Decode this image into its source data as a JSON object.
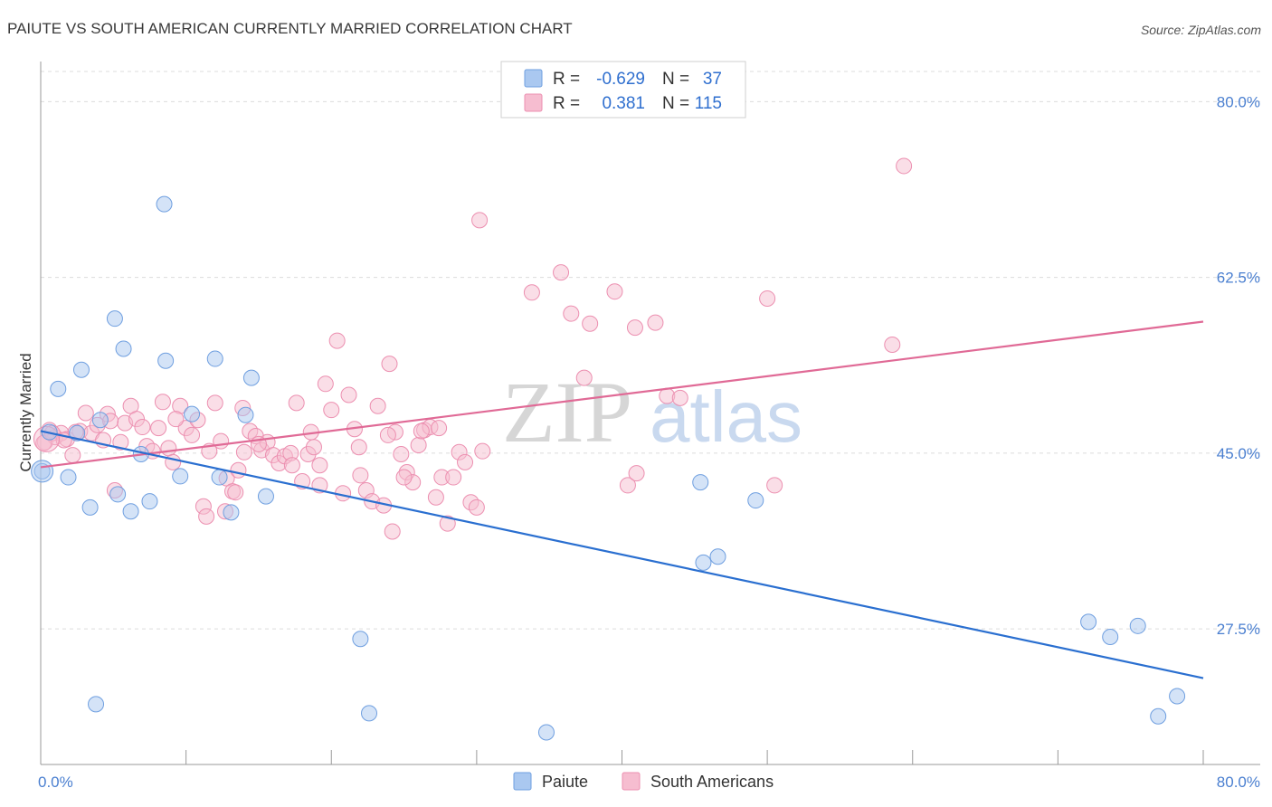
{
  "header": {
    "title": "PAIUTE VS SOUTH AMERICAN CURRENTLY MARRIED CORRELATION CHART",
    "source": "Source: ZipAtlas.com"
  },
  "watermark": {
    "zip": "ZIP",
    "atlas": "atlas"
  },
  "colors": {
    "paiute_fill": "#aac8f0",
    "paiute_stroke": "#6f9fe0",
    "paiute_line": "#2a6fd0",
    "sa_fill": "#f6bdd0",
    "sa_stroke": "#ec8fb0",
    "sa_line": "#e06a96"
  },
  "legend": {
    "rows": [
      {
        "r_label": "R =",
        "r_value": "-0.629",
        "n_label": "N =",
        "n_value": "37"
      },
      {
        "r_label": "R =",
        "r_value": "0.381",
        "n_label": "N =",
        "n_value": "115"
      }
    ]
  },
  "chart_data": {
    "type": "scatter",
    "title": "PAIUTE VS SOUTH AMERICAN CURRENTLY MARRIED CORRELATION CHART",
    "xlabel": "",
    "ylabel": "Currently Married",
    "xlim": [
      0,
      80
    ],
    "ylim": [
      14,
      84
    ],
    "x_tick_labels": [
      "0.0%",
      "80.0%"
    ],
    "y_ticks": [
      27.5,
      45.0,
      62.5,
      80.0
    ],
    "y_tick_labels": [
      "27.5%",
      "45.0%",
      "62.5%",
      "80.0%"
    ],
    "legend_position": "top-center",
    "series": [
      {
        "name": "Paiute",
        "trend": {
          "x": [
            0,
            80
          ],
          "y": [
            47.2,
            22.6
          ]
        },
        "points": [
          [
            0.1,
            43.2
          ],
          [
            1.2,
            51.4
          ],
          [
            2.8,
            53.3
          ],
          [
            5.1,
            58.4
          ],
          [
            5.7,
            55.4
          ],
          [
            8.5,
            69.8
          ],
          [
            8.6,
            54.2
          ],
          [
            12.0,
            54.4
          ],
          [
            14.5,
            52.5
          ],
          [
            1.9,
            42.6
          ],
          [
            3.4,
            39.6
          ],
          [
            5.3,
            40.9
          ],
          [
            6.2,
            39.2
          ],
          [
            7.5,
            40.2
          ],
          [
            9.6,
            42.7
          ],
          [
            12.3,
            42.6
          ],
          [
            13.1,
            39.1
          ],
          [
            15.5,
            40.7
          ],
          [
            6.9,
            44.9
          ],
          [
            2.5,
            47.0
          ],
          [
            4.1,
            48.3
          ],
          [
            10.4,
            48.9
          ],
          [
            14.1,
            48.8
          ],
          [
            0.6,
            47.1
          ],
          [
            3.8,
            20.0
          ],
          [
            22.0,
            26.5
          ],
          [
            22.6,
            19.1
          ],
          [
            34.8,
            17.2
          ],
          [
            45.6,
            34.1
          ],
          [
            46.6,
            34.7
          ],
          [
            45.4,
            42.1
          ],
          [
            49.2,
            40.3
          ],
          [
            72.1,
            28.2
          ],
          [
            73.6,
            26.7
          ],
          [
            75.5,
            27.8
          ],
          [
            76.9,
            18.8
          ],
          [
            78.2,
            20.8
          ]
        ]
      },
      {
        "name": "South Americans",
        "trend": {
          "x": [
            0,
            80
          ],
          "y": [
            43.6,
            58.1
          ]
        },
        "points": [
          [
            0.3,
            46.1
          ],
          [
            0.6,
            47.3
          ],
          [
            1.0,
            46.6
          ],
          [
            1.4,
            47.0
          ],
          [
            1.8,
            46.4
          ],
          [
            2.2,
            44.8
          ],
          [
            2.7,
            47.2
          ],
          [
            3.1,
            49.0
          ],
          [
            3.5,
            47.0
          ],
          [
            3.9,
            47.8
          ],
          [
            4.3,
            46.3
          ],
          [
            4.6,
            48.9
          ],
          [
            5.1,
            41.3
          ],
          [
            5.5,
            46.1
          ],
          [
            5.8,
            48.0
          ],
          [
            6.2,
            49.7
          ],
          [
            6.6,
            48.4
          ],
          [
            7.0,
            47.6
          ],
          [
            7.3,
            45.7
          ],
          [
            7.7,
            45.2
          ],
          [
            8.1,
            47.5
          ],
          [
            8.4,
            50.1
          ],
          [
            8.8,
            45.5
          ],
          [
            9.1,
            44.1
          ],
          [
            9.6,
            49.7
          ],
          [
            10.0,
            47.5
          ],
          [
            10.4,
            46.8
          ],
          [
            10.8,
            48.3
          ],
          [
            11.2,
            39.7
          ],
          [
            11.6,
            45.2
          ],
          [
            12.0,
            50.0
          ],
          [
            12.4,
            46.2
          ],
          [
            12.8,
            42.5
          ],
          [
            13.2,
            41.2
          ],
          [
            13.6,
            43.3
          ],
          [
            14.0,
            45.1
          ],
          [
            14.4,
            47.2
          ],
          [
            14.8,
            46.7
          ],
          [
            15.2,
            45.3
          ],
          [
            15.6,
            46.1
          ],
          [
            16.0,
            44.8
          ],
          [
            16.4,
            44.0
          ],
          [
            16.8,
            44.7
          ],
          [
            17.2,
            45.0
          ],
          [
            17.6,
            50.0
          ],
          [
            18.0,
            42.2
          ],
          [
            18.4,
            44.9
          ],
          [
            18.8,
            45.6
          ],
          [
            19.2,
            43.8
          ],
          [
            19.6,
            51.9
          ],
          [
            20.0,
            49.3
          ],
          [
            20.4,
            56.2
          ],
          [
            20.8,
            41.0
          ],
          [
            21.2,
            50.8
          ],
          [
            21.6,
            47.4
          ],
          [
            22.0,
            42.8
          ],
          [
            22.4,
            41.3
          ],
          [
            22.8,
            40.2
          ],
          [
            23.2,
            49.7
          ],
          [
            23.6,
            39.8
          ],
          [
            24.0,
            53.9
          ],
          [
            24.4,
            47.1
          ],
          [
            24.8,
            44.9
          ],
          [
            25.2,
            43.1
          ],
          [
            25.6,
            42.1
          ],
          [
            26.0,
            45.8
          ],
          [
            26.4,
            47.3
          ],
          [
            26.8,
            47.6
          ],
          [
            27.2,
            40.6
          ],
          [
            27.6,
            42.6
          ],
          [
            28.0,
            38.0
          ],
          [
            28.4,
            42.6
          ],
          [
            28.8,
            45.1
          ],
          [
            29.2,
            44.1
          ],
          [
            29.6,
            40.1
          ],
          [
            30.0,
            39.6
          ],
          [
            30.4,
            45.2
          ],
          [
            0.2,
            46.0
          ],
          [
            0.8,
            47.0
          ],
          [
            1.6,
            46.3
          ],
          [
            2.4,
            47.1
          ],
          [
            4.8,
            48.2
          ],
          [
            9.3,
            48.4
          ],
          [
            12.7,
            39.2
          ],
          [
            13.9,
            49.5
          ],
          [
            15.0,
            45.9
          ],
          [
            18.6,
            47.1
          ],
          [
            21.9,
            45.6
          ],
          [
            23.9,
            46.8
          ],
          [
            25.0,
            42.6
          ],
          [
            26.2,
            47.2
          ],
          [
            27.4,
            47.5
          ],
          [
            30.2,
            68.2
          ],
          [
            33.8,
            61.0
          ],
          [
            35.8,
            63.0
          ],
          [
            36.5,
            58.9
          ],
          [
            37.4,
            52.5
          ],
          [
            37.8,
            57.9
          ],
          [
            39.5,
            61.1
          ],
          [
            40.4,
            41.8
          ],
          [
            41.0,
            43.0
          ],
          [
            40.9,
            57.5
          ],
          [
            42.3,
            58.0
          ],
          [
            43.1,
            50.7
          ],
          [
            44.0,
            50.5
          ],
          [
            50.0,
            60.4
          ],
          [
            50.5,
            41.8
          ],
          [
            58.6,
            55.8
          ],
          [
            59.4,
            73.6
          ],
          [
            11.4,
            38.7
          ],
          [
            13.4,
            41.1
          ],
          [
            17.3,
            43.8
          ],
          [
            19.2,
            41.8
          ],
          [
            24.2,
            37.2
          ]
        ]
      }
    ]
  },
  "bottom_legend": {
    "items": [
      {
        "label": "Paiute"
      },
      {
        "label": "South Americans"
      }
    ]
  }
}
